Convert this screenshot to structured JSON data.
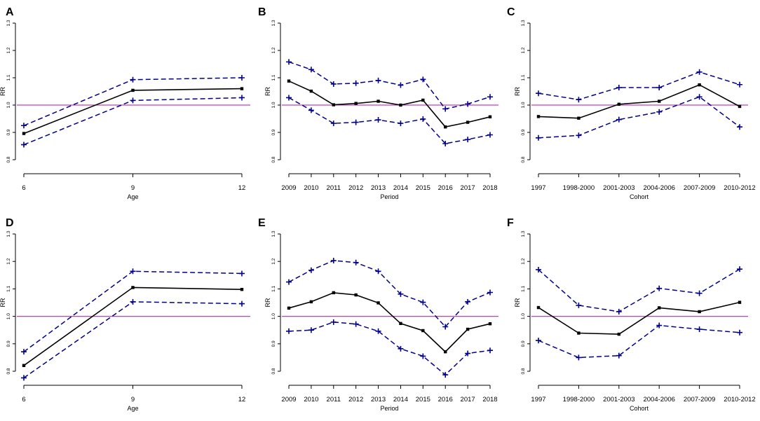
{
  "figure": {
    "colors": {
      "estimate": "#000000",
      "ci": "#00008b",
      "reference": "#c040c0"
    },
    "legend_hint": "solid line = RR estimate; dashed lines with + markers = 95% CI bounds; magenta line = RR 1.0"
  },
  "chart_data": [
    {
      "panel": "A",
      "type": "line",
      "xlabel": "Age",
      "ylabel": "RR",
      "categories": [
        "6",
        "9",
        "12"
      ],
      "ylim": [
        0.8,
        1.3
      ],
      "yticks": [
        "0.8",
        "0.9",
        "1.0",
        "1.1",
        "1.2",
        "1.3"
      ],
      "reference_line": 1.0,
      "series": [
        {
          "name": "RR",
          "values": [
            0.896,
            1.054,
            1.06
          ]
        },
        {
          "name": "Upper CI",
          "values": [
            0.925,
            1.093,
            1.1
          ]
        },
        {
          "name": "Lower CI",
          "values": [
            0.855,
            1.017,
            1.027
          ]
        }
      ]
    },
    {
      "panel": "B",
      "type": "line",
      "xlabel": "Period",
      "ylabel": "RR",
      "categories": [
        "2009",
        "2010",
        "2011",
        "2012",
        "2013",
        "2014",
        "2015",
        "2016",
        "2017",
        "2018"
      ],
      "ylim": [
        0.8,
        1.3
      ],
      "yticks": [
        "0.8",
        "0.9",
        "1.0",
        "1.1",
        "1.2",
        "1.3"
      ],
      "reference_line": 1.0,
      "series": [
        {
          "name": "RR",
          "values": [
            1.088,
            1.051,
            1.001,
            1.006,
            1.014,
            1.0,
            1.018,
            0.92,
            0.937,
            0.957
          ]
        },
        {
          "name": "Upper CI",
          "values": [
            1.158,
            1.13,
            1.077,
            1.08,
            1.09,
            1.073,
            1.094,
            0.986,
            1.004,
            1.03
          ]
        },
        {
          "name": "Lower CI",
          "values": [
            1.027,
            0.981,
            0.933,
            0.937,
            0.946,
            0.933,
            0.949,
            0.859,
            0.874,
            0.891
          ]
        }
      ]
    },
    {
      "panel": "C",
      "type": "line",
      "xlabel": "Cohort",
      "ylabel": "RR",
      "categories": [
        "1997",
        "1998-2000",
        "2001-2003",
        "2004-2006",
        "2007-2009",
        "2010-2012"
      ],
      "ylim": [
        0.8,
        1.3
      ],
      "yticks": [
        "0.8",
        "0.9",
        "1.0",
        "1.1",
        "1.2",
        "1.3"
      ],
      "reference_line": 1.0,
      "series": [
        {
          "name": "RR",
          "values": [
            0.958,
            0.952,
            1.003,
            1.014,
            1.074,
            0.995
          ]
        },
        {
          "name": "Upper CI",
          "values": [
            1.043,
            1.02,
            1.064,
            1.064,
            1.121,
            1.075
          ]
        },
        {
          "name": "Lower CI",
          "values": [
            0.88,
            0.889,
            0.947,
            0.975,
            1.03,
            0.92
          ]
        }
      ]
    },
    {
      "panel": "D",
      "type": "line",
      "xlabel": "Age",
      "ylabel": "RR",
      "categories": [
        "6",
        "9",
        "12"
      ],
      "ylim": [
        0.8,
        1.3
      ],
      "yticks": [
        "0.8",
        "0.9",
        "1.0",
        "1.1",
        "1.2",
        "1.3"
      ],
      "reference_line": 1.0,
      "series": [
        {
          "name": "RR",
          "values": [
            0.821,
            1.105,
            1.098
          ]
        },
        {
          "name": "Upper CI",
          "values": [
            0.871,
            1.164,
            1.156
          ]
        },
        {
          "name": "Lower CI",
          "values": [
            0.776,
            1.053,
            1.046
          ]
        }
      ]
    },
    {
      "panel": "E",
      "type": "line",
      "xlabel": "Period",
      "ylabel": "RR",
      "categories": [
        "2009",
        "2010",
        "2011",
        "2012",
        "2013",
        "2014",
        "2015",
        "2016",
        "2017",
        "2018"
      ],
      "ylim": [
        0.8,
        1.3
      ],
      "yticks": [
        "0.8",
        "0.9",
        "1.0",
        "1.1",
        "1.2",
        "1.3"
      ],
      "reference_line": 1.0,
      "series": [
        {
          "name": "RR",
          "values": [
            1.03,
            1.053,
            1.086,
            1.078,
            1.049,
            0.974,
            0.948,
            0.871,
            0.953,
            0.973
          ]
        },
        {
          "name": "Upper CI",
          "values": [
            1.125,
            1.168,
            1.203,
            1.196,
            1.164,
            1.081,
            1.051,
            0.962,
            1.053,
            1.087
          ]
        },
        {
          "name": "Lower CI",
          "values": [
            0.946,
            0.95,
            0.979,
            0.972,
            0.946,
            0.882,
            0.855,
            0.787,
            0.865,
            0.876
          ]
        }
      ]
    },
    {
      "panel": "F",
      "type": "line",
      "xlabel": "Cohort",
      "ylabel": "RR",
      "categories": [
        "1997",
        "1998-2000",
        "2001-2003",
        "2004-2006",
        "2007-2009",
        "2010-2012"
      ],
      "ylim": [
        0.8,
        1.3
      ],
      "yticks": [
        "0.8",
        "0.9",
        "1.0",
        "1.1",
        "1.2",
        "1.3"
      ],
      "reference_line": 1.0,
      "series": [
        {
          "name": "RR",
          "values": [
            1.032,
            0.939,
            0.935,
            1.031,
            1.017,
            1.051
          ]
        },
        {
          "name": "Upper CI",
          "values": [
            1.17,
            1.04,
            1.017,
            1.102,
            1.084,
            1.172
          ]
        },
        {
          "name": "Lower CI",
          "values": [
            0.912,
            0.85,
            0.857,
            0.967,
            0.953,
            0.941
          ]
        }
      ]
    }
  ]
}
